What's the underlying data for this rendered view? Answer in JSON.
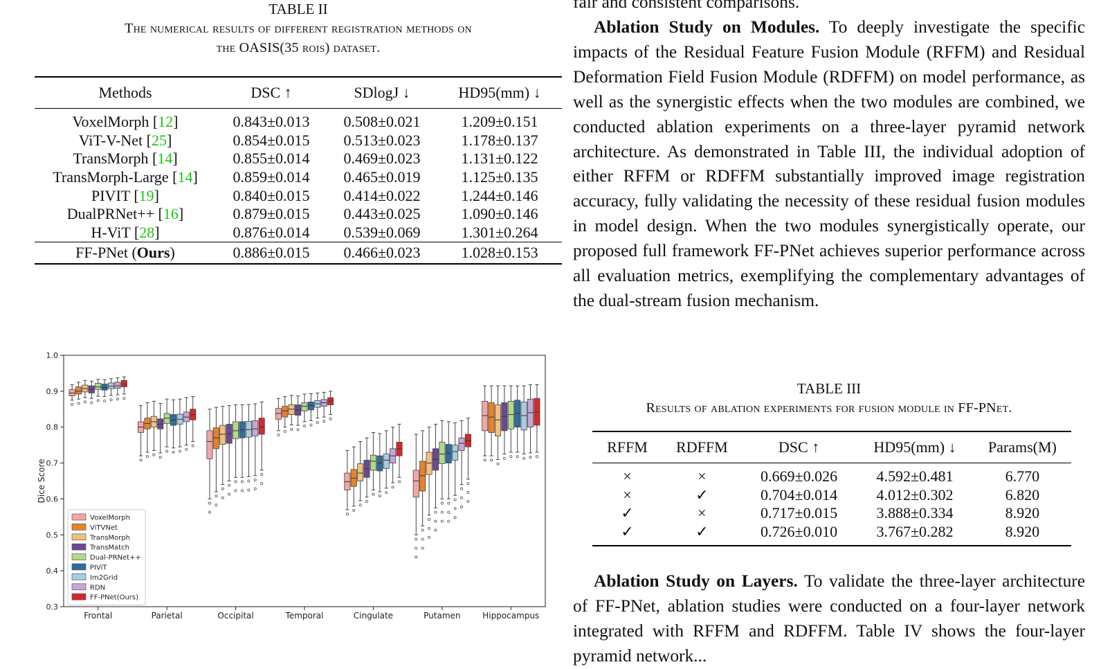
{
  "table2": {
    "label": "TABLE II",
    "caption": "The numerical results of different registration methods on the OASIS(35 ROIs) dataset.",
    "caption_line1": "The numerical results of different registration methods on",
    "caption_line2": "the OASIS(35 rois) dataset.",
    "headers": [
      "Methods",
      "DSC ↑",
      "SDlogJ ↓",
      "HD95(mm) ↓"
    ],
    "rows": [
      {
        "method": "VoxelMorph [",
        "cite": "12",
        "close": "]",
        "dsc": "0.843±0.013",
        "sdlogj": "0.508±0.021",
        "hd95": "1.209±0.151"
      },
      {
        "method": "ViT-V-Net [",
        "cite": "25",
        "close": "]",
        "dsc": "0.854±0.015",
        "sdlogj": "0.513±0.023",
        "hd95": "1.178±0.137"
      },
      {
        "method": "TransMorph [",
        "cite": "14",
        "close": "]",
        "dsc": "0.855±0.014",
        "sdlogj": "0.469±0.023",
        "hd95": "1.131±0.122"
      },
      {
        "method": "TransMorph-Large [",
        "cite": "14",
        "close": "]",
        "dsc": "0.859±0.014",
        "sdlogj": "0.465±0.019",
        "hd95": "1.125±0.135"
      },
      {
        "method": "PIVIT [",
        "cite": "19",
        "close": "]",
        "dsc": "0.840±0.015",
        "sdlogj": "0.414±0.022",
        "hd95": "1.244±0.146"
      },
      {
        "method": "DualPRNet++ [",
        "cite": "16",
        "close": "]",
        "dsc": "0.879±0.015",
        "sdlogj": "0.443±0.025",
        "hd95": "1.090±0.146"
      },
      {
        "method": "H-ViT [",
        "cite": "28",
        "close": "]",
        "dsc": "0.876±0.014",
        "sdlogj": "0.539±0.069",
        "hd95": "1.301±0.264"
      }
    ],
    "ours": {
      "method_pre": "FF-PNet (",
      "method_bold": "Ours",
      "method_post": ")",
      "dsc": "0.886±0.015",
      "sdlogj": "0.466±0.023",
      "hd95": "1.028±0.153"
    }
  },
  "right_text": {
    "top_line": "fair and consistent comparisons.",
    "para1_lead": "Ablation Study on Modules.",
    "para1_body": " To deeply investigate the specific impacts of the Residual Feature Fusion Module (RFFM) and Residual Deformation Field Fusion Module (RDFFM) on model performance, as well as the synergistic effects when the two modules are combined, we conducted ablation experiments on a three-layer pyramid network architecture. As demonstrated in Table III, the individual adoption of either RFFM or RDFFM substantially improved image registration accuracy, fully validating the necessity of these residual fusion modules in model design. When the two modules synergistically operate, our proposed full framework FF-PNet achieves superior performance across all evaluation metrics, exemplifying the complementary advantages of the dual-stream fusion mechanism.",
    "para2_lead": "Ablation Study on Layers.",
    "para2_body": " To validate the three-layer architecture of FF-PNet, ablation studies were conducted on a four-layer network integrated with RFFM and RDFFM. Table IV shows the four-layer pyramid network..."
  },
  "table3": {
    "label": "TABLE III",
    "caption": "Results of ablation experiments for fusion module in FF-PNet.",
    "headers": [
      "RFFM",
      "RDFFM",
      "DSC ↑",
      "HD95(mm) ↓",
      "Params(M)"
    ],
    "rows": [
      {
        "rffm": "×",
        "rdffm": "×",
        "dsc": "0.669±0.026",
        "hd95": "4.592±0.481",
        "params": "6.770"
      },
      {
        "rffm": "×",
        "rdffm": "✓",
        "dsc": "0.704±0.014",
        "hd95": "4.012±0.302",
        "params": "6.820"
      },
      {
        "rffm": "✓",
        "rdffm": "×",
        "dsc": "0.717±0.015",
        "hd95": "3.888±0.334",
        "params": "8.920"
      },
      {
        "rffm": "✓",
        "rdffm": "✓",
        "dsc": "0.726±0.010",
        "hd95": "3.767±0.282",
        "params": "8.920"
      }
    ]
  },
  "colors": {
    "cite": "#16c60c",
    "series": [
      "#f4a6a6",
      "#e8822a",
      "#f2c07c",
      "#6b4a94",
      "#b3d98c",
      "#2f6d9c",
      "#a9cbe3",
      "#c8a6d4",
      "#d8282c"
    ]
  },
  "chart_data": {
    "type": "box",
    "ylabel": "Dice Score",
    "ylim": [
      0.3,
      1.0
    ],
    "yticks": [
      "0.3",
      "0.4",
      "0.5",
      "0.6",
      "0.7",
      "0.8",
      "0.9",
      "1.0"
    ],
    "categories": [
      "Frontal",
      "Parietal",
      "Occipital",
      "Temporal",
      "Cingulate",
      "Putamen",
      "Hippocampus"
    ],
    "legend_position": "lower-left",
    "series_names": [
      "VoxelMorph",
      "ViTVNet",
      "TransMorph",
      "TransMatch",
      "Dual-PRNet++",
      "PIViT",
      "Im2Grid",
      "RDN",
      "FF-PNet(Ours)"
    ],
    "boxes": [
      [
        [
          0.875,
          0.887,
          0.895,
          0.905,
          0.918
        ],
        [
          0.878,
          0.892,
          0.9,
          0.912,
          0.925
        ],
        [
          0.882,
          0.898,
          0.907,
          0.917,
          0.93
        ],
        [
          0.88,
          0.895,
          0.905,
          0.915,
          0.928
        ],
        [
          0.886,
          0.905,
          0.912,
          0.922,
          0.933
        ],
        [
          0.885,
          0.903,
          0.91,
          0.92,
          0.932
        ],
        [
          0.888,
          0.907,
          0.914,
          0.923,
          0.935
        ],
        [
          0.89,
          0.908,
          0.915,
          0.925,
          0.937
        ],
        [
          0.892,
          0.912,
          0.92,
          0.93,
          0.94
        ]
      ],
      [
        [
          0.72,
          0.785,
          0.8,
          0.815,
          0.86
        ],
        [
          0.73,
          0.795,
          0.81,
          0.825,
          0.868
        ],
        [
          0.735,
          0.8,
          0.815,
          0.83,
          0.872
        ],
        [
          0.728,
          0.795,
          0.808,
          0.823,
          0.866
        ],
        [
          0.745,
          0.81,
          0.825,
          0.838,
          0.878
        ],
        [
          0.742,
          0.805,
          0.82,
          0.835,
          0.876
        ],
        [
          0.745,
          0.808,
          0.822,
          0.836,
          0.878
        ],
        [
          0.75,
          0.815,
          0.828,
          0.842,
          0.882
        ],
        [
          0.76,
          0.82,
          0.835,
          0.85,
          0.885
        ]
      ],
      [
        [
          0.6,
          0.712,
          0.76,
          0.79,
          0.85
        ],
        [
          0.62,
          0.74,
          0.77,
          0.798,
          0.855
        ],
        [
          0.64,
          0.752,
          0.78,
          0.805,
          0.858
        ],
        [
          0.65,
          0.755,
          0.782,
          0.808,
          0.86
        ],
        [
          0.66,
          0.768,
          0.79,
          0.815,
          0.862
        ],
        [
          0.66,
          0.77,
          0.792,
          0.815,
          0.862
        ],
        [
          0.662,
          0.772,
          0.793,
          0.816,
          0.863
        ],
        [
          0.665,
          0.775,
          0.795,
          0.818,
          0.865
        ],
        [
          0.68,
          0.78,
          0.8,
          0.825,
          0.87
        ]
      ],
      [
        [
          0.79,
          0.822,
          0.838,
          0.852,
          0.88
        ],
        [
          0.8,
          0.828,
          0.845,
          0.858,
          0.885
        ],
        [
          0.806,
          0.835,
          0.85,
          0.862,
          0.888
        ],
        [
          0.805,
          0.833,
          0.848,
          0.862,
          0.887
        ],
        [
          0.815,
          0.845,
          0.858,
          0.868,
          0.892
        ],
        [
          0.818,
          0.848,
          0.86,
          0.87,
          0.893
        ],
        [
          0.825,
          0.855,
          0.865,
          0.874,
          0.895
        ],
        [
          0.828,
          0.858,
          0.868,
          0.877,
          0.897
        ],
        [
          0.835,
          0.862,
          0.872,
          0.882,
          0.9
        ]
      ],
      [
        [
          0.57,
          0.625,
          0.648,
          0.672,
          0.735
        ],
        [
          0.58,
          0.635,
          0.658,
          0.682,
          0.745
        ],
        [
          0.595,
          0.65,
          0.672,
          0.698,
          0.76
        ],
        [
          0.605,
          0.66,
          0.684,
          0.708,
          0.77
        ],
        [
          0.625,
          0.68,
          0.705,
          0.722,
          0.785
        ],
        [
          0.62,
          0.678,
          0.7,
          0.72,
          0.782
        ],
        [
          0.63,
          0.685,
          0.708,
          0.725,
          0.79
        ],
        [
          0.645,
          0.7,
          0.72,
          0.74,
          0.8
        ],
        [
          0.66,
          0.72,
          0.74,
          0.758,
          0.808
        ]
      ],
      [
        [
          0.5,
          0.605,
          0.65,
          0.68,
          0.78
        ],
        [
          0.525,
          0.622,
          0.665,
          0.705,
          0.79
        ],
        [
          0.555,
          0.668,
          0.7,
          0.73,
          0.8
        ],
        [
          0.575,
          0.68,
          0.71,
          0.74,
          0.808
        ],
        [
          0.6,
          0.698,
          0.725,
          0.758,
          0.818
        ],
        [
          0.6,
          0.7,
          0.728,
          0.752,
          0.815
        ],
        [
          0.61,
          0.708,
          0.732,
          0.75,
          0.812
        ],
        [
          0.64,
          0.735,
          0.755,
          0.77,
          0.818
        ],
        [
          0.655,
          0.745,
          0.762,
          0.78,
          0.825
        ]
      ],
      [
        [
          0.72,
          0.79,
          0.832,
          0.872,
          0.915
        ],
        [
          0.72,
          0.785,
          0.828,
          0.868,
          0.915
        ],
        [
          0.71,
          0.775,
          0.82,
          0.862,
          0.915
        ],
        [
          0.725,
          0.79,
          0.83,
          0.868,
          0.915
        ],
        [
          0.73,
          0.795,
          0.835,
          0.872,
          0.915
        ],
        [
          0.73,
          0.8,
          0.838,
          0.875,
          0.915
        ],
        [
          0.725,
          0.792,
          0.832,
          0.87,
          0.915
        ],
        [
          0.728,
          0.8,
          0.84,
          0.878,
          0.918
        ],
        [
          0.73,
          0.805,
          0.842,
          0.88,
          0.918
        ]
      ]
    ]
  }
}
